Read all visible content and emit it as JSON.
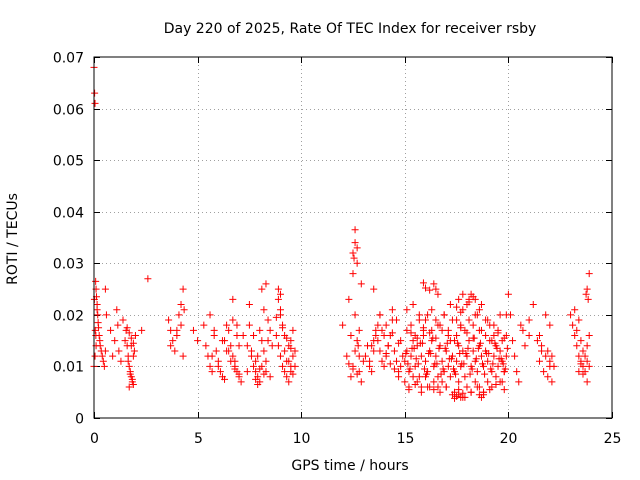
{
  "chart_data": {
    "type": "scatter",
    "title": "Day 220 of 2025, Rate Of TEC Index for receiver rsby",
    "xlabel": "GPS time / hours",
    "ylabel": "ROTI / TECUs",
    "xlim": [
      0,
      25
    ],
    "ylim": [
      0,
      0.07
    ],
    "xticks": [
      0,
      5,
      10,
      15,
      20,
      25
    ],
    "xtick_labels": [
      "0",
      "5",
      "10",
      "15",
      "20",
      "25"
    ],
    "yticks": [
      0,
      0.01,
      0.02,
      0.03,
      0.04,
      0.05,
      0.06,
      0.07
    ],
    "ytick_labels": [
      "0",
      "0.01",
      "0.02",
      "0.03",
      "0.04",
      "0.05",
      "0.06",
      "0.07"
    ],
    "grid": true,
    "marker": "+",
    "color": "#ff0000",
    "series": [
      {
        "name": "ROTI",
        "x": [
          0.0,
          0.03,
          0.05,
          0.08,
          0.1,
          0.12,
          0.15,
          0.18,
          0.2,
          0.22,
          0.25,
          0.28,
          0.3,
          0.35,
          0.4,
          0.45,
          0.5,
          0.55,
          0.0,
          0.05,
          0.1,
          0.15,
          0.02,
          0.06,
          0.09,
          0.55,
          0.6,
          0.8,
          0.9,
          1.0,
          1.1,
          1.15,
          1.2,
          1.3,
          1.4,
          1.5,
          1.55,
          1.6,
          1.65,
          1.7,
          1.75,
          1.8,
          1.85,
          1.9,
          1.95,
          2.0,
          1.6,
          1.7,
          1.8,
          1.9,
          1.65,
          1.75,
          1.85,
          1.9,
          1.7,
          1.8,
          2.3,
          2.6,
          3.6,
          3.7,
          3.8,
          3.9,
          4.0,
          4.1,
          4.2,
          4.3,
          4.35,
          3.7,
          4.0,
          4.2,
          4.3,
          4.8,
          5.0,
          5.3,
          5.4,
          5.5,
          5.6,
          5.7,
          5.8,
          5.9,
          6.0,
          6.1,
          6.2,
          6.3,
          6.4,
          6.5,
          6.6,
          6.7,
          6.8,
          6.9,
          7.0,
          7.1,
          5.6,
          5.8,
          6.2,
          6.4,
          6.6,
          6.8,
          7.0,
          5.7,
          6.0,
          6.3,
          6.7,
          6.9,
          6.5,
          6.7,
          6.9,
          7.0,
          6.8,
          7.2,
          7.4,
          7.5,
          7.6,
          7.7,
          7.8,
          7.9,
          8.0,
          8.1,
          8.2,
          8.3,
          8.4,
          8.5,
          8.6,
          7.5,
          7.7,
          7.9,
          8.1,
          8.3,
          8.5,
          7.6,
          7.8,
          8.0,
          8.2,
          8.4,
          8.0,
          8.2,
          8.1,
          8.3,
          7.4,
          7.8,
          7.9,
          8.8,
          8.9,
          9.0,
          9.1,
          9.2,
          9.3,
          9.4,
          9.5,
          9.6,
          9.7,
          8.9,
          9.0,
          9.1,
          9.3,
          9.5,
          9.6,
          9.0,
          9.2,
          9.4,
          9.6,
          9.2,
          9.4,
          9.5,
          9.1,
          9.3,
          9.5,
          9.0,
          8.8,
          8.9,
          9.7,
          12.0,
          12.2,
          12.4,
          12.5,
          12.6,
          12.7,
          12.8,
          12.9,
          13.0,
          12.3,
          12.5,
          12.7,
          12.9,
          12.4,
          12.6,
          12.8,
          12.5,
          12.6,
          12.7,
          12.55,
          12.6,
          12.75,
          12.8,
          12.3,
          12.5,
          12.7,
          13.1,
          13.2,
          13.3,
          13.4,
          13.5,
          13.6,
          13.7,
          13.8,
          13.9,
          14.0,
          14.1,
          14.2,
          14.3,
          14.4,
          14.5,
          14.6,
          14.7,
          14.8,
          14.9,
          13.3,
          13.5,
          13.7,
          13.9,
          14.1,
          14.3,
          14.5,
          14.7,
          13.4,
          13.6,
          13.8,
          14.0,
          14.2,
          14.4,
          14.6,
          14.8,
          13.5,
          13.8,
          14.1,
          14.4,
          14.7,
          15.0,
          15.1,
          15.2,
          15.3,
          15.4,
          15.5,
          15.6,
          15.7,
          15.8,
          15.9,
          16.0,
          16.1,
          16.2,
          16.3,
          16.4,
          16.5,
          16.6,
          16.7,
          16.8,
          16.9,
          17.0,
          17.1,
          17.2,
          17.3,
          17.4,
          17.5,
          17.6,
          17.7,
          17.8,
          17.9,
          18.0,
          18.1,
          18.2,
          18.3,
          18.4,
          18.5,
          18.6,
          18.7,
          18.8,
          18.9,
          19.0,
          19.1,
          19.2,
          19.3,
          19.4,
          19.5,
          19.6,
          19.7,
          19.8,
          19.9,
          15.0,
          15.1,
          15.2,
          15.3,
          15.4,
          15.5,
          15.6,
          15.7,
          15.8,
          15.9,
          16.0,
          16.1,
          16.2,
          16.3,
          16.4,
          16.5,
          16.6,
          16.7,
          16.8,
          16.9,
          17.0,
          17.1,
          17.2,
          17.3,
          17.4,
          17.5,
          17.6,
          17.7,
          17.8,
          17.9,
          18.0,
          18.1,
          18.2,
          18.3,
          18.4,
          18.5,
          18.6,
          18.7,
          18.8,
          18.9,
          19.0,
          19.1,
          19.2,
          19.3,
          19.4,
          19.5,
          19.6,
          19.7,
          19.8,
          19.9,
          15.05,
          15.25,
          15.45,
          15.65,
          15.85,
          16.05,
          16.25,
          16.45,
          16.65,
          16.85,
          17.05,
          17.25,
          17.45,
          17.65,
          17.85,
          18.05,
          18.25,
          18.45,
          18.65,
          18.85,
          19.05,
          19.25,
          19.45,
          19.65,
          19.85,
          15.15,
          15.35,
          15.55,
          15.75,
          15.95,
          16.15,
          16.35,
          16.55,
          16.75,
          16.95,
          17.15,
          17.35,
          17.55,
          17.75,
          17.95,
          18.15,
          18.35,
          18.55,
          18.75,
          18.95,
          19.15,
          19.35,
          19.55,
          19.75,
          19.95,
          15.1,
          15.4,
          15.7,
          16.0,
          16.3,
          16.6,
          16.9,
          17.2,
          17.5,
          17.8,
          18.1,
          18.4,
          18.7,
          19.0,
          19.3,
          19.6,
          15.2,
          15.5,
          15.8,
          16.1,
          16.4,
          16.7,
          17.0,
          17.3,
          17.6,
          17.9,
          18.2,
          18.5,
          18.8,
          19.1,
          19.4,
          19.7,
          15.3,
          15.6,
          15.9,
          16.2,
          16.5,
          16.8,
          17.1,
          17.4,
          17.7,
          18.0,
          18.3,
          18.6,
          18.9,
          19.2,
          19.5,
          19.8,
          16.4,
          16.5,
          16.6,
          17.6,
          17.8,
          18.0,
          18.2,
          18.4,
          18.6,
          19.9,
          17.5,
          17.7,
          18.1,
          18.3,
          17.4,
          17.5,
          17.6,
          17.7,
          17.8,
          18.6,
          18.7,
          18.8,
          19.8,
          15.9,
          16.0,
          16.2,
          20.0,
          20.1,
          20.2,
          20.4,
          20.5,
          20.6,
          20.8,
          21.0,
          21.2,
          21.4,
          21.6,
          21.8,
          22.0,
          22.1,
          22.2,
          21.5,
          21.7,
          21.9,
          22.1,
          21.6,
          21.8,
          22.0,
          21.5,
          21.9,
          20.3,
          20.7,
          21.0,
          22.0,
          23.0,
          23.1,
          23.2,
          23.3,
          23.4,
          23.5,
          23.6,
          23.7,
          23.8,
          23.9,
          23.2,
          23.4,
          23.6,
          23.8,
          23.3,
          23.5,
          23.7,
          23.9,
          23.4,
          23.6,
          23.8,
          23.85,
          23.9,
          23.75,
          23.8,
          23.5
        ],
        "y": [
          0.068,
          0.063,
          0.061,
          0.0265,
          0.025,
          0.0235,
          0.022,
          0.02,
          0.0185,
          0.0175,
          0.016,
          0.015,
          0.014,
          0.013,
          0.012,
          0.011,
          0.01,
          0.013,
          0.01,
          0.012,
          0.014,
          0.021,
          0.023,
          0.017,
          0.016,
          0.025,
          0.02,
          0.017,
          0.012,
          0.015,
          0.021,
          0.018,
          0.013,
          0.011,
          0.019,
          0.015,
          0.017,
          0.014,
          0.012,
          0.01,
          0.009,
          0.008,
          0.007,
          0.0065,
          0.013,
          0.016,
          0.0175,
          0.0165,
          0.0155,
          0.0145,
          0.011,
          0.0085,
          0.0075,
          0.012,
          0.006,
          0.014,
          0.017,
          0.027,
          0.019,
          0.017,
          0.015,
          0.013,
          0.017,
          0.02,
          0.022,
          0.025,
          0.021,
          0.014,
          0.016,
          0.018,
          0.012,
          0.017,
          0.015,
          0.018,
          0.014,
          0.012,
          0.01,
          0.009,
          0.016,
          0.013,
          0.011,
          0.009,
          0.008,
          0.015,
          0.018,
          0.017,
          0.014,
          0.012,
          0.01,
          0.009,
          0.008,
          0.007,
          0.02,
          0.017,
          0.015,
          0.013,
          0.011,
          0.0095,
          0.0085,
          0.012,
          0.01,
          0.0075,
          0.019,
          0.016,
          0.013,
          0.023,
          0.018,
          0.014,
          0.011,
          0.016,
          0.014,
          0.022,
          0.012,
          0.01,
          0.009,
          0.008,
          0.007,
          0.015,
          0.013,
          0.011,
          0.019,
          0.017,
          0.014,
          0.018,
          0.016,
          0.012,
          0.01,
          0.009,
          0.008,
          0.013,
          0.011,
          0.0095,
          0.0085,
          0.015,
          0.017,
          0.021,
          0.025,
          0.026,
          0.009,
          0.0075,
          0.0065,
          0.016,
          0.014,
          0.012,
          0.01,
          0.009,
          0.008,
          0.007,
          0.015,
          0.017,
          0.013,
          0.025,
          0.024,
          0.018,
          0.011,
          0.01,
          0.0085,
          0.02,
          0.016,
          0.014,
          0.012,
          0.013,
          0.011,
          0.009,
          0.0175,
          0.0155,
          0.0135,
          0.021,
          0.0195,
          0.023,
          0.01,
          0.018,
          0.012,
          0.008,
          0.01,
          0.013,
          0.015,
          0.009,
          0.007,
          0.011,
          0.023,
          0.028,
          0.03,
          0.026,
          0.016,
          0.02,
          0.017,
          0.032,
          0.034,
          0.033,
          0.031,
          0.0365,
          0.014,
          0.012,
          0.0105,
          0.0095,
          0.0085,
          0.012,
          0.014,
          0.01,
          0.009,
          0.015,
          0.016,
          0.018,
          0.013,
          0.011,
          0.01,
          0.012,
          0.014,
          0.016,
          0.019,
          0.013,
          0.011,
          0.009,
          0.01,
          0.012,
          0.011,
          0.013,
          0.015,
          0.017,
          0.0125,
          0.0105,
          0.0095,
          0.008,
          0.014,
          0.017,
          0.02,
          0.016,
          0.014,
          0.021,
          0.019,
          0.015,
          0.025,
          0.02,
          0.018,
          0.0165,
          0.0145,
          0.011,
          0.013,
          0.009,
          0.012,
          0.015,
          0.01,
          0.014,
          0.008,
          0.012,
          0.016,
          0.011,
          0.009,
          0.013,
          0.015,
          0.01,
          0.012,
          0.008,
          0.014,
          0.011,
          0.009,
          0.013,
          0.01,
          0.015,
          0.012,
          0.009,
          0.011,
          0.014,
          0.01,
          0.013,
          0.008,
          0.012,
          0.015,
          0.01,
          0.013,
          0.011,
          0.009,
          0.014,
          0.012,
          0.01,
          0.013,
          0.011,
          0.015,
          0.009,
          0.012,
          0.014,
          0.01,
          0.013,
          0.011,
          0.009,
          0.012,
          0.007,
          0.017,
          0.006,
          0.018,
          0.008,
          0.016,
          0.007,
          0.019,
          0.006,
          0.017,
          0.008,
          0.02,
          0.006,
          0.017,
          0.007,
          0.019,
          0.006,
          0.018,
          0.007,
          0.02,
          0.006,
          0.017,
          0.008,
          0.019,
          0.005,
          0.016,
          0.007,
          0.018,
          0.004,
          0.017,
          0.006,
          0.019,
          0.005,
          0.018,
          0.007,
          0.02,
          0.006,
          0.017,
          0.005,
          0.019,
          0.007,
          0.018,
          0.006,
          0.016,
          0.008,
          0.017,
          0.007,
          0.015,
          0.009,
          0.016,
          0.0125,
          0.0095,
          0.0135,
          0.0105,
          0.0145,
          0.0085,
          0.0125,
          0.0105,
          0.0135,
          0.0095,
          0.0145,
          0.0115,
          0.0085,
          0.0125,
          0.0105,
          0.0135,
          0.0095,
          0.0115,
          0.0145,
          0.0085,
          0.0125,
          0.0105,
          0.0135,
          0.0115,
          0.0095,
          0.0105,
          0.0135,
          0.0115,
          0.0145,
          0.0095,
          0.0125,
          0.0155,
          0.0105,
          0.0085,
          0.0135,
          0.0115,
          0.0095,
          0.0145,
          0.0105,
          0.0125,
          0.0085,
          0.0155,
          0.0135,
          0.0105,
          0.0125,
          0.0095,
          0.0145,
          0.0115,
          0.0105,
          0.0135,
          0.021,
          0.022,
          0.02,
          0.019,
          0.021,
          0.018,
          0.02,
          0.022,
          0.019,
          0.021,
          0.023,
          0.02,
          0.022,
          0.019,
          0.018,
          0.02,
          0.0055,
          0.0065,
          0.005,
          0.006,
          0.0055,
          0.005,
          0.006,
          0.0045,
          0.0055,
          0.004,
          0.005,
          0.006,
          0.0045,
          0.0055,
          0.0065,
          0.007,
          0.0165,
          0.0155,
          0.0175,
          0.0165,
          0.0155,
          0.017,
          0.016,
          0.015,
          0.0175,
          0.0165,
          0.0155,
          0.017,
          0.016,
          0.015,
          0.0165,
          0.0155,
          0.026,
          0.025,
          0.024,
          0.023,
          0.024,
          0.022,
          0.024,
          0.023,
          0.021,
          0.02,
          0.0215,
          0.0205,
          0.0225,
          0.0235,
          0.0038,
          0.0042,
          0.0045,
          0.004,
          0.0048,
          0.0045,
          0.004,
          0.005,
          0.0055,
          0.0262,
          0.0252,
          0.0248,
          0.024,
          0.02,
          0.015,
          0.009,
          0.007,
          0.018,
          0.014,
          0.019,
          0.022,
          0.015,
          0.013,
          0.02,
          0.018,
          0.012,
          0.01,
          0.011,
          0.009,
          0.008,
          0.007,
          0.014,
          0.012,
          0.01,
          0.016,
          0.013,
          0.012,
          0.017,
          0.016,
          0.011,
          0.02,
          0.018,
          0.016,
          0.014,
          0.012,
          0.011,
          0.01,
          0.009,
          0.014,
          0.016,
          0.021,
          0.019,
          0.013,
          0.011,
          0.017,
          0.015,
          0.012,
          0.01,
          0.009,
          0.0085,
          0.025,
          0.023,
          0.028,
          0.024,
          0.007,
          0.0105
        ]
      }
    ]
  }
}
